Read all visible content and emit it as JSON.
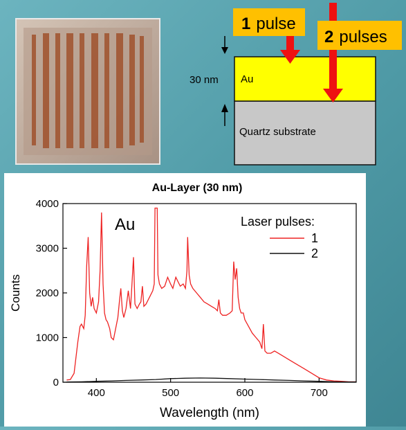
{
  "diagram": {
    "pulse1_label_num": "1",
    "pulse1_label_text": "pulse",
    "pulse2_label_num": "2",
    "pulse2_label_text": "pulses",
    "thickness_label": "30 nm",
    "au_layer_label": "Au",
    "substrate_label": "Quartz substrate",
    "colors": {
      "au": "#ffff00",
      "substrate": "#c8c8c8",
      "arrow": "#ee1111",
      "label_box": "#ffc000"
    }
  },
  "chart_data": {
    "type": "line",
    "title": "Au-Layer (30 nm)",
    "xlabel": "Wavelength (nm)",
    "ylabel": "Counts",
    "xlim": [
      355,
      750
    ],
    "ylim": [
      0,
      4000
    ],
    "xticks": [
      400,
      500,
      600,
      700
    ],
    "yticks": [
      0,
      1000,
      2000,
      3000,
      4000
    ],
    "annotation": "Au",
    "legend": {
      "title": "Laser pulses:",
      "placement": "top-right"
    },
    "grid": false,
    "series": [
      {
        "name": "1",
        "color": "#ee2222",
        "x": [
          360,
          365,
          370,
          375,
          378,
          380,
          383,
          385,
          387,
          389,
          391,
          393,
          395,
          397,
          400,
          403,
          405,
          407,
          409,
          411,
          413,
          415,
          418,
          420,
          423,
          426,
          429,
          431,
          433,
          435,
          437,
          440,
          443,
          446,
          448,
          450,
          452,
          455,
          458,
          460,
          462,
          464,
          467,
          470,
          473,
          476,
          478,
          479,
          480,
          482,
          483,
          485,
          488,
          492,
          496,
          500,
          503,
          507,
          510,
          513,
          517,
          520,
          522,
          523,
          525,
          527,
          530,
          535,
          540,
          545,
          550,
          555,
          560,
          563,
          565,
          567,
          570,
          575,
          580,
          583,
          585,
          587,
          589,
          591,
          593,
          595,
          598,
          600,
          605,
          610,
          615,
          620,
          623,
          625,
          627,
          630,
          635,
          640,
          645,
          650,
          660,
          670,
          680,
          690,
          700,
          710,
          720,
          730,
          740,
          750
        ],
        "y": [
          50,
          60,
          200,
          900,
          1250,
          1300,
          1200,
          1500,
          2600,
          3250,
          2000,
          1700,
          1900,
          1650,
          1550,
          1800,
          2500,
          3800,
          2200,
          1550,
          1400,
          1350,
          1200,
          1000,
          950,
          1200,
          1450,
          1800,
          2100,
          1600,
          1450,
          1650,
          2050,
          1650,
          2200,
          2800,
          1750,
          1650,
          1750,
          1800,
          2150,
          1700,
          1750,
          1850,
          1950,
          2050,
          2200,
          3900,
          3900,
          3900,
          2400,
          2200,
          2100,
          2150,
          2350,
          2200,
          2100,
          2350,
          2250,
          2150,
          2200,
          2100,
          2500,
          3250,
          2400,
          2200,
          2100,
          2000,
          1900,
          1800,
          1750,
          1700,
          1650,
          1600,
          1850,
          1550,
          1500,
          1500,
          1550,
          1600,
          2700,
          2300,
          2550,
          1900,
          1650,
          1550,
          1550,
          1400,
          1250,
          1100,
          1000,
          900,
          750,
          1300,
          700,
          650,
          650,
          700,
          650,
          600,
          500,
          400,
          300,
          200,
          100,
          50,
          30,
          20,
          10,
          10
        ]
      },
      {
        "name": "2",
        "color": "#111111",
        "x": [
          360,
          380,
          400,
          420,
          440,
          460,
          480,
          500,
          520,
          540,
          560,
          580,
          600,
          620,
          640,
          660,
          680,
          700,
          720,
          740,
          750
        ],
        "y": [
          5,
          10,
          20,
          30,
          40,
          50,
          60,
          80,
          90,
          95,
          90,
          80,
          70,
          60,
          50,
          40,
          30,
          20,
          10,
          5,
          5
        ]
      }
    ]
  }
}
